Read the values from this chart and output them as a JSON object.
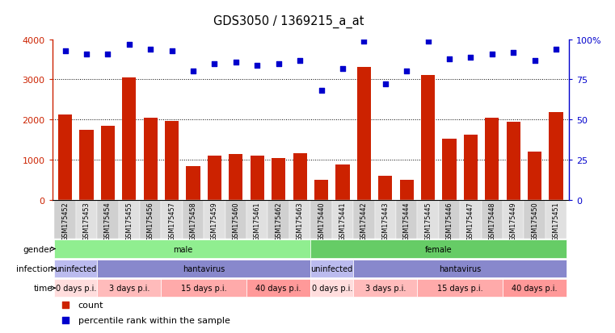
{
  "title": "GDS3050 / 1369215_a_at",
  "samples": [
    "GSM175452",
    "GSM175453",
    "GSM175454",
    "GSM175455",
    "GSM175456",
    "GSM175457",
    "GSM175458",
    "GSM175459",
    "GSM175460",
    "GSM175461",
    "GSM175462",
    "GSM175463",
    "GSM175440",
    "GSM175441",
    "GSM175442",
    "GSM175443",
    "GSM175444",
    "GSM175445",
    "GSM175446",
    "GSM175447",
    "GSM175448",
    "GSM175449",
    "GSM175450",
    "GSM175451"
  ],
  "counts": [
    2120,
    1750,
    1840,
    3050,
    2040,
    1960,
    840,
    1090,
    1140,
    1090,
    1040,
    1160,
    500,
    880,
    3320,
    590,
    500,
    3100,
    1520,
    1620,
    2050,
    1940,
    1210,
    2180
  ],
  "percentiles": [
    93,
    91,
    91,
    97,
    94,
    93,
    80,
    85,
    86,
    84,
    85,
    87,
    68,
    82,
    99,
    72,
    80,
    99,
    88,
    89,
    91,
    92,
    87,
    94
  ],
  "bar_color": "#CC2200",
  "dot_color": "#0000CC",
  "ylim_left": [
    0,
    4000
  ],
  "ylim_right": [
    0,
    100
  ],
  "yticks_left": [
    0,
    1000,
    2000,
    3000,
    4000
  ],
  "yticks_right": [
    0,
    25,
    50,
    75,
    100
  ],
  "gender_groups": [
    {
      "label": "male",
      "start": 0,
      "end": 12,
      "color": "#90EE90"
    },
    {
      "label": "female",
      "start": 12,
      "end": 24,
      "color": "#66CC66"
    }
  ],
  "infection_groups": [
    {
      "label": "uninfected",
      "start": 0,
      "end": 2,
      "color": "#BBBBEE"
    },
    {
      "label": "hantavirus",
      "start": 2,
      "end": 12,
      "color": "#8888CC"
    },
    {
      "label": "uninfected",
      "start": 12,
      "end": 14,
      "color": "#BBBBEE"
    },
    {
      "label": "hantavirus",
      "start": 14,
      "end": 24,
      "color": "#8888CC"
    }
  ],
  "time_groups": [
    {
      "label": "0 days p.i.",
      "start": 0,
      "end": 2,
      "color": "#FFDDDD"
    },
    {
      "label": "3 days p.i.",
      "start": 2,
      "end": 5,
      "color": "#FFBBBB"
    },
    {
      "label": "15 days p.i.",
      "start": 5,
      "end": 9,
      "color": "#FFAAAA"
    },
    {
      "label": "40 days p.i.",
      "start": 9,
      "end": 12,
      "color": "#FF9999"
    },
    {
      "label": "0 days p.i.",
      "start": 12,
      "end": 14,
      "color": "#FFDDDD"
    },
    {
      "label": "3 days p.i.",
      "start": 14,
      "end": 17,
      "color": "#FFBBBB"
    },
    {
      "label": "15 days p.i.",
      "start": 17,
      "end": 21,
      "color": "#FFAAAA"
    },
    {
      "label": "40 days p.i.",
      "start": 21,
      "end": 24,
      "color": "#FF9999"
    }
  ],
  "legend_items": [
    {
      "label": "count",
      "color": "#CC2200"
    },
    {
      "label": "percentile rank within the sample",
      "color": "#0000CC"
    }
  ]
}
